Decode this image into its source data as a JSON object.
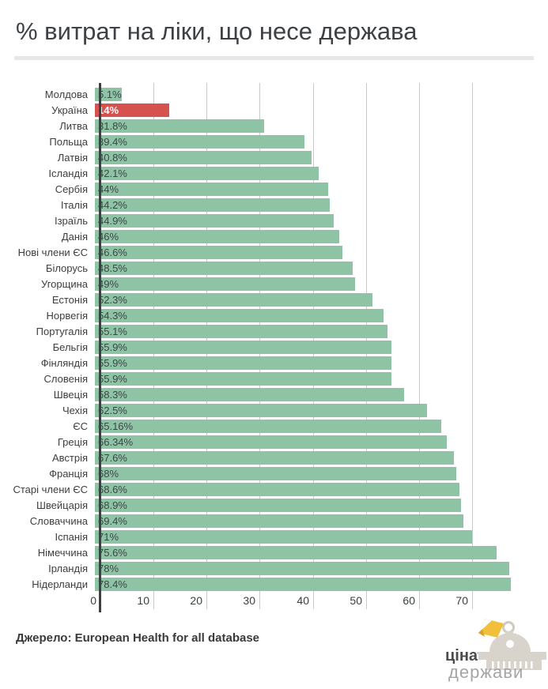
{
  "page": {
    "title": "% витрат на ліки, що несе держава",
    "source": "Джерело: European Health for all database",
    "logo": {
      "line1": "ціна",
      "line2": "держави"
    }
  },
  "chart_data": {
    "type": "bar",
    "orientation": "horizontal",
    "title": "% витрат на ліки, що несе держава",
    "categories": [
      "Молдова",
      "Україна",
      "Литва",
      "Польща",
      "Латвія",
      "Ісландія",
      "Сербія",
      "Італія",
      "Ізраїль",
      "Данія",
      "Нові члени ЄС",
      "Білорусь",
      "Угорщина",
      "Естонія",
      "Норвегія",
      "Португалія",
      "Бельгія",
      "Фінляндія",
      "Словенія",
      "Швеція",
      "Чехія",
      "ЄС",
      "Греція",
      "Австрія",
      "Франція",
      "Старі члени ЄС",
      "Швейцарія",
      "Словаччина",
      "Іспанія",
      "Німеччина",
      "Ірландія",
      "Нідерланди"
    ],
    "values": [
      5.1,
      14,
      31.8,
      39.4,
      40.8,
      42.1,
      44,
      44.2,
      44.9,
      46,
      46.6,
      48.5,
      49,
      52.3,
      54.3,
      55.1,
      55.9,
      55.9,
      55.9,
      58.3,
      62.5,
      65.16,
      66.34,
      67.6,
      68,
      68.6,
      68.9,
      69.4,
      71,
      75.6,
      78,
      78.4
    ],
    "display_labels": [
      "5.1%",
      "14%",
      "31.8%",
      "39.4%",
      "40.8%",
      "42.1%",
      "44%",
      "44.2%",
      "44.9%",
      "46%",
      "46.6%",
      "48.5%",
      "49%",
      "52.3%",
      "54.3%",
      "55.1%",
      "55.9%",
      "55.9%",
      "55.9%",
      "58.3%",
      "62.5%",
      "65.16%",
      "66.34%",
      "67.6%",
      "68%",
      "68.6%",
      "68.9%",
      "69.4%",
      "71%",
      "75.6%",
      "78%",
      "78.4%"
    ],
    "highlight_category": "Україна",
    "highlight_index": 1,
    "x_ticks": [
      0,
      10,
      20,
      30,
      40,
      50,
      60,
      70
    ],
    "xlim": [
      0,
      84
    ],
    "xlabel": "",
    "ylabel": "",
    "grid": true,
    "legend": false,
    "colors": {
      "bar": "#8fc3a6",
      "highlight_bar": "#d5524f",
      "gridline": "#c9c9c9",
      "axis_line": "#3e4043",
      "value_text": "#3f4548",
      "highlight_value_text": "#ffffff"
    },
    "source": "Джерело: European Health for all database"
  }
}
